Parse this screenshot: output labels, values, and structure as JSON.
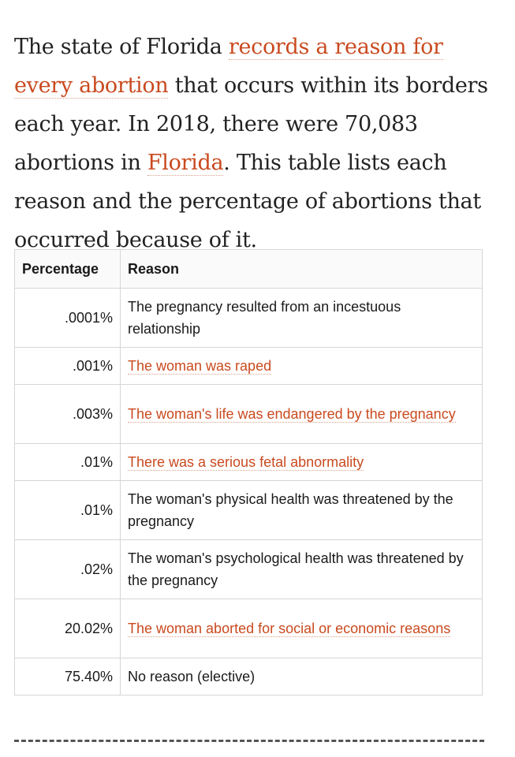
{
  "intro": {
    "t1": "The state of Florida ",
    "link1": "records a reason for every abortion",
    "t2": " that occurs within its borders each year. In 2018, there were 70,083 abortions in ",
    "link2": "Florida",
    "t3": ". This table lists each reason and the percentage of abortions that occurred because of it."
  },
  "table": {
    "headers": {
      "percentage": "Percentage",
      "reason": "Reason"
    },
    "rows": [
      {
        "pct": ".0001%",
        "reason": "The pregnancy resulted from an incestuous relationship"
      },
      {
        "pct": ".001%",
        "reason": "The woman was raped"
      },
      {
        "pct": ".003%",
        "reason": "The woman's life was endangered by the pregnancy"
      },
      {
        "pct": ".01%",
        "reason": "There was a serious fetal abnormality"
      },
      {
        "pct": ".01%",
        "reason": "The woman's physical health was threatened by the pregnancy"
      },
      {
        "pct": ".02%",
        "reason": "The woman's psychological health was threatened by the pregnancy"
      },
      {
        "pct": "20.02%",
        "reason": "The woman aborted for social or economic reasons"
      },
      {
        "pct": "75.40%",
        "reason": "No reason (elective)"
      }
    ]
  },
  "colors": {
    "link": "#c94a1f",
    "text": "#222222",
    "border": "#d6d6d6"
  }
}
